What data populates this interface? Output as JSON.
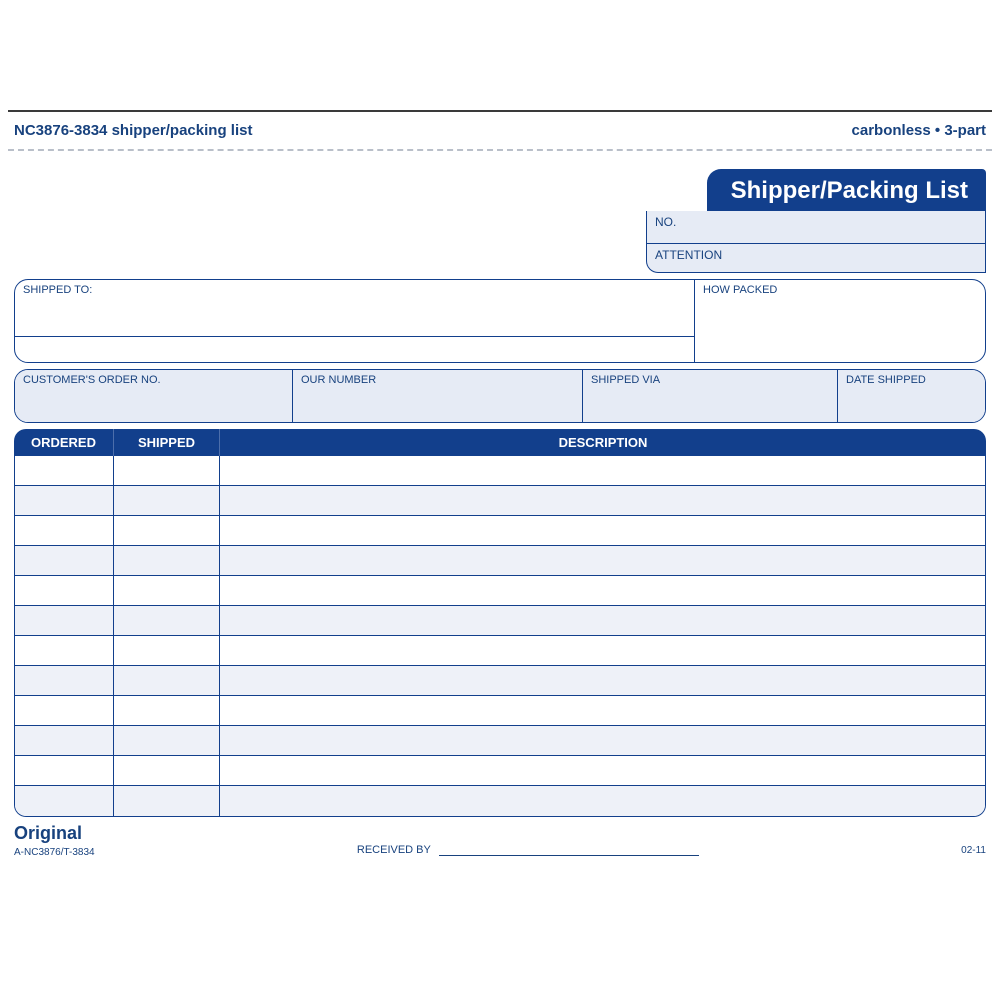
{
  "header": {
    "left_code": "NC3876-3834",
    "left_title": "shipper/packing list",
    "right": "carbonless • 3-part"
  },
  "title_tab": "Shipper/Packing List",
  "info_box": {
    "no_label": "NO.",
    "attention_label": "ATTENTION"
  },
  "ship_section": {
    "shipped_to_label": "SHIPPED TO:",
    "how_packed_label": "HOW PACKED"
  },
  "order_section": {
    "customer_order_label": "CUSTOMER'S ORDER NO.",
    "our_number_label": "OUR NUMBER",
    "shipped_via_label": "SHIPPED VIA",
    "date_shipped_label": "DATE SHIPPED"
  },
  "items": {
    "headers": {
      "ordered": "ORDERED",
      "shipped": "SHIPPED",
      "description": "DESCRIPTION"
    },
    "row_count": 12
  },
  "footer": {
    "original_label": "Original",
    "form_code": "A-NC3876/T-3834",
    "received_by_label": "RECEIVED BY",
    "rev": "02-11"
  },
  "colors": {
    "primary": "#123f8c",
    "text": "#18427e",
    "tint": "#e6ebf5",
    "alt_row": "#eef1f8"
  }
}
